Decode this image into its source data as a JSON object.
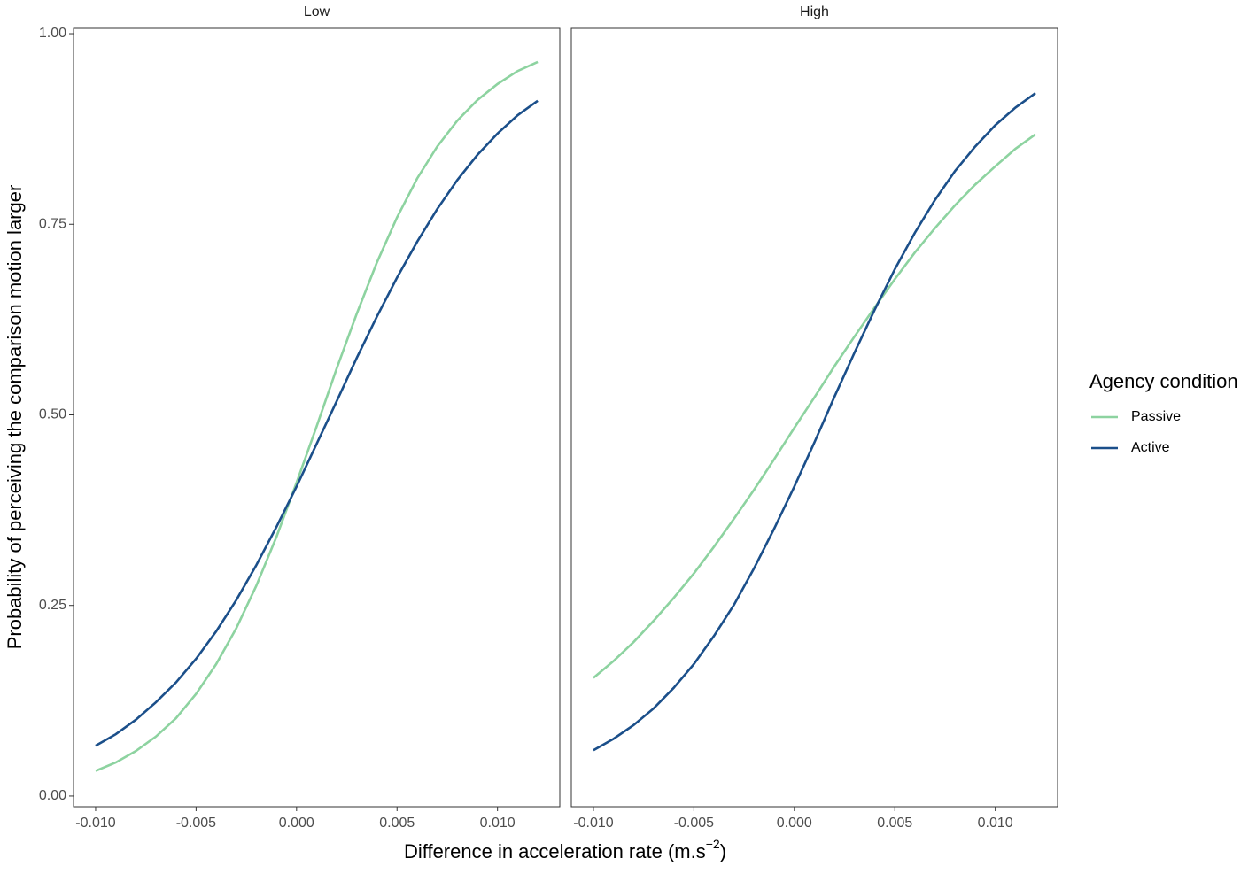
{
  "chart_data": [
    {
      "type": "line",
      "title": "Low",
      "x": [
        -0.01,
        -0.009,
        -0.008,
        -0.007,
        -0.006,
        -0.005,
        -0.004,
        -0.003,
        -0.002,
        -0.001,
        0,
        0.001,
        0.002,
        0.003,
        0.004,
        0.005,
        0.006,
        0.007,
        0.008,
        0.009,
        0.01,
        0.011,
        0.012
      ],
      "series": [
        {
          "name": "Passive",
          "color": "#8dd3a0",
          "values": [
            0.033,
            0.044,
            0.059,
            0.078,
            0.102,
            0.134,
            0.173,
            0.22,
            0.276,
            0.34,
            0.411,
            0.485,
            0.561,
            0.633,
            0.7,
            0.759,
            0.81,
            0.852,
            0.886,
            0.913,
            0.934,
            0.951,
            0.963
          ]
        },
        {
          "name": "Active",
          "color": "#1b4f8a",
          "values": [
            0.066,
            0.081,
            0.1,
            0.123,
            0.149,
            0.18,
            0.216,
            0.257,
            0.303,
            0.353,
            0.406,
            0.462,
            0.518,
            0.575,
            0.629,
            0.68,
            0.727,
            0.77,
            0.808,
            0.841,
            0.869,
            0.893,
            0.912
          ]
        }
      ],
      "xlim": [
        -0.0111,
        0.0131
      ],
      "ylim": [
        -0.014,
        1.007
      ],
      "xticks": [
        {
          "value": -0.01,
          "label": "-0.010"
        },
        {
          "value": -0.005,
          "label": "-0.005"
        },
        {
          "value": 0,
          "label": "0.000"
        },
        {
          "value": 0.005,
          "label": "0.005"
        },
        {
          "value": 0.01,
          "label": "0.010"
        }
      ],
      "yticks": [
        {
          "value": 0,
          "label": "0.00"
        },
        {
          "value": 0.25,
          "label": "0.25"
        },
        {
          "value": 0.5,
          "label": "0.50"
        },
        {
          "value": 0.75,
          "label": "0.75"
        },
        {
          "value": 1,
          "label": "1.00"
        }
      ],
      "grid": false
    },
    {
      "type": "line",
      "title": "High",
      "x": [
        -0.01,
        -0.009,
        -0.008,
        -0.007,
        -0.006,
        -0.005,
        -0.004,
        -0.003,
        -0.002,
        -0.001,
        0,
        0.001,
        0.002,
        0.003,
        0.004,
        0.005,
        0.006,
        0.007,
        0.008,
        0.009,
        0.01,
        0.011,
        0.012
      ],
      "series": [
        {
          "name": "Passive",
          "color": "#8dd3a0",
          "values": [
            0.155,
            0.177,
            0.202,
            0.23,
            0.26,
            0.292,
            0.327,
            0.364,
            0.402,
            0.442,
            0.483,
            0.523,
            0.564,
            0.603,
            0.641,
            0.678,
            0.713,
            0.745,
            0.775,
            0.802,
            0.826,
            0.849,
            0.868
          ]
        },
        {
          "name": "Active",
          "color": "#1b4f8a",
          "values": [
            0.06,
            0.075,
            0.093,
            0.115,
            0.142,
            0.173,
            0.21,
            0.251,
            0.299,
            0.351,
            0.406,
            0.464,
            0.524,
            0.582,
            0.638,
            0.691,
            0.739,
            0.782,
            0.82,
            0.852,
            0.88,
            0.903,
            0.922
          ]
        }
      ],
      "xlim": [
        -0.0111,
        0.0131
      ],
      "ylim": [
        -0.014,
        1.007
      ],
      "xticks": [
        {
          "value": -0.01,
          "label": "-0.010"
        },
        {
          "value": -0.005,
          "label": "-0.005"
        },
        {
          "value": 0,
          "label": "0.000"
        },
        {
          "value": 0.005,
          "label": "0.005"
        },
        {
          "value": 0.01,
          "label": "0.010"
        }
      ],
      "grid": false
    }
  ],
  "xlabel": {
    "text": "Difference in acceleration rate (m.s",
    "superscript": "−2",
    "suffix": ")"
  },
  "ylabel": "Probability of perceiving the comparison motion larger",
  "legend_title": "Agency condition",
  "legend_position": "right"
}
